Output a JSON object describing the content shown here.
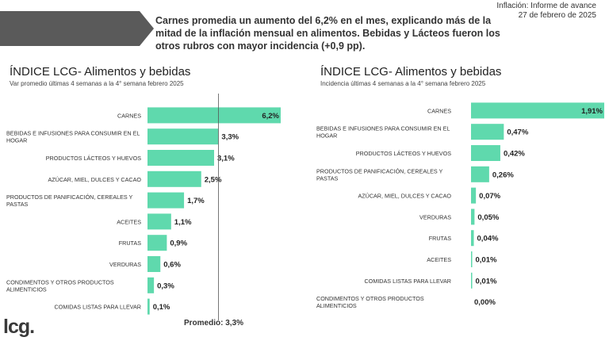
{
  "header": {
    "report_type": "Inflación: Informe de avance",
    "report_date": "27 de febrero de 2025",
    "headline": "Carnes promedia un aumento del 6,2% en el mes, explicando más de la mitad de la inflación mensual en alimentos. Bebidas y Lácteos fueron los otros rubros con mayor incidencia (+0,9 pp).",
    "banner_color": "#5a5a5a"
  },
  "logo": {
    "text": "lcg."
  },
  "accent_color": "#5fd9ad",
  "chart_data": [
    {
      "type": "bar",
      "orientation": "horizontal",
      "title": "ÍNDICE LCG- Alimentos y bebidas",
      "subtitle": "Var promedio últimas 4 semanas a la 4° semana febrero 2025",
      "categories": [
        [
          "CARNES"
        ],
        [
          "BEBIDAS E INFUSIONES PARA CONSUMIR EN EL",
          "HOGAR"
        ],
        [
          "PRODUCTOS LÁCTEOS Y HUEVOS"
        ],
        [
          "AZÚCAR, MIEL, DULCES Y CACAO"
        ],
        [
          "PRODUCTOS DE PANIFICACIÓN, CEREALES Y",
          "PASTAS"
        ],
        [
          "ACEITES"
        ],
        [
          "FRUTAS"
        ],
        [
          "VERDURAS"
        ],
        [
          "CONDIMENTOS Y OTROS PRODUCTOS",
          "ALIMENTICIOS"
        ],
        [
          "COMIDAS LISTAS PARA LLEVAR"
        ]
      ],
      "values": [
        6.2,
        3.3,
        3.1,
        2.5,
        1.7,
        1.1,
        0.9,
        0.6,
        0.3,
        0.1
      ],
      "labels": [
        "6,2%",
        "3,3%",
        "3,1%",
        "2,5%",
        "1,7%",
        "1,1%",
        "0,9%",
        "0,6%",
        "0,3%",
        "0,1%"
      ],
      "xlim": [
        0,
        6.2
      ],
      "reference_line": {
        "value": 3.3,
        "label": "Promedio: 3,3%"
      }
    },
    {
      "type": "bar",
      "orientation": "horizontal",
      "title": "ÍNDICE LCG- Alimentos y bebidas",
      "subtitle": "Incidencia últimas 4 semanas a la 4° semana febrero 2025",
      "categories": [
        [
          "CARNES"
        ],
        [
          "BEBIDAS E INFUSIONES PARA CONSUMIR EN EL",
          "HOGAR"
        ],
        [
          "PRODUCTOS LÁCTEOS Y HUEVOS"
        ],
        [
          "PRODUCTOS DE PANIFICACIÓN, CEREALES Y",
          "PASTAS"
        ],
        [
          "AZÚCAR, MIEL, DULCES Y CACAO"
        ],
        [
          "VERDURAS"
        ],
        [
          "FRUTAS"
        ],
        [
          "ACEITES"
        ],
        [
          "COMIDAS LISTAS PARA LLEVAR"
        ],
        [
          "CONDIMENTOS Y OTROS PRODUCTOS",
          "ALIMENTICIOS"
        ]
      ],
      "values": [
        1.91,
        0.47,
        0.42,
        0.26,
        0.07,
        0.05,
        0.04,
        0.01,
        0.01,
        0.0
      ],
      "labels": [
        "1,91%",
        "0,47%",
        "0,42%",
        "0,26%",
        "0,07%",
        "0,05%",
        "0,04%",
        "0,01%",
        "0,01%",
        "0,00%"
      ],
      "xlim": [
        0,
        1.91
      ]
    }
  ]
}
